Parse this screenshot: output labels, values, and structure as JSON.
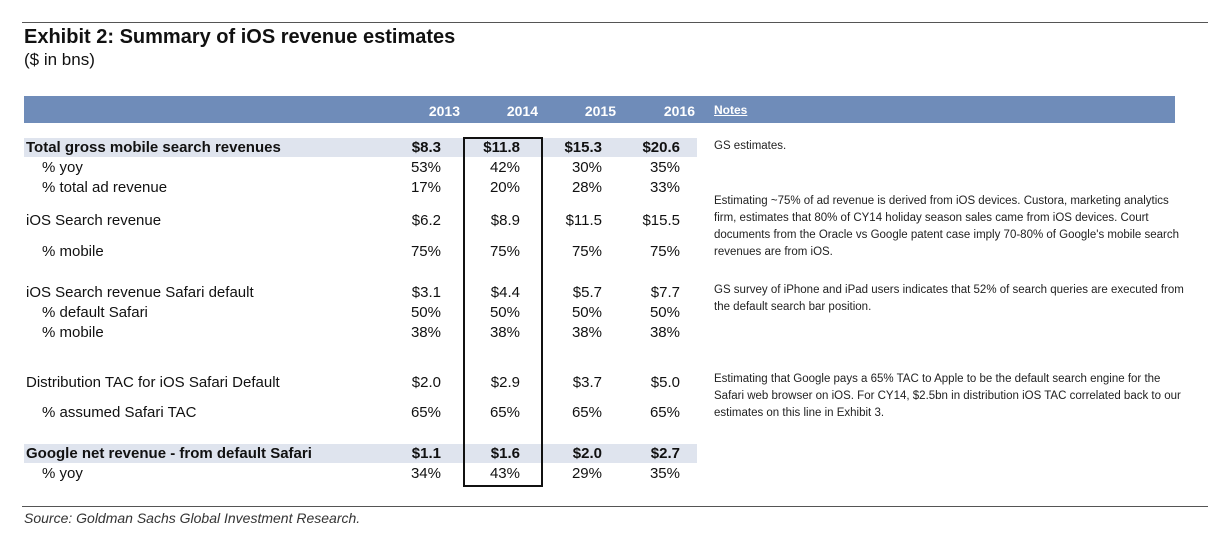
{
  "exhibit": {
    "title": "Exhibit 2: Summary of iOS revenue estimates",
    "subtitle": "($ in bns)"
  },
  "table": {
    "years": [
      "2013",
      "2014",
      "2015",
      "2016"
    ],
    "notes_header": "Notes",
    "rows": [
      {
        "label": "Total gross mobile search revenues",
        "values": [
          "$8.3",
          "$11.8",
          "$15.3",
          "$20.6"
        ]
      },
      {
        "label": "% yoy",
        "values": [
          "53%",
          "42%",
          "30%",
          "35%"
        ]
      },
      {
        "label": "% total ad revenue",
        "values": [
          "17%",
          "20%",
          "28%",
          "33%"
        ]
      },
      {
        "label": "iOS Search revenue",
        "values": [
          "$6.2",
          "$8.9",
          "$11.5",
          "$15.5"
        ]
      },
      {
        "label": "% mobile",
        "values": [
          "75%",
          "75%",
          "75%",
          "75%"
        ]
      },
      {
        "label": "iOS Search revenue Safari default",
        "values": [
          "$3.1",
          "$4.4",
          "$5.7",
          "$7.7"
        ]
      },
      {
        "label": "% default Safari",
        "values": [
          "50%",
          "50%",
          "50%",
          "50%"
        ]
      },
      {
        "label": "% mobile",
        "values": [
          "38%",
          "38%",
          "38%",
          "38%"
        ]
      },
      {
        "label": "Distribution TAC for iOS Safari Default",
        "values": [
          "$2.0",
          "$2.9",
          "$3.7",
          "$5.0"
        ]
      },
      {
        "label": "% assumed Safari TAC",
        "values": [
          "65%",
          "65%",
          "65%",
          "65%"
        ]
      },
      {
        "label": "Google net revenue - from default Safari",
        "values": [
          "$1.1",
          "$1.6",
          "$2.0",
          "$2.7"
        ]
      },
      {
        "label": "% yoy",
        "values": [
          "34%",
          "43%",
          "29%",
          "35%"
        ]
      }
    ],
    "notes": [
      "GS estimates.",
      "Estimating ~75% of ad revenue is derived from iOS devices. Custora, marketing analytics firm, estimates that 80% of CY14 holiday season sales came from iOS devices. Court documents from the Oracle vs Google patent case imply 70-80% of Google's mobile search revenues are from iOS.",
      "GS survey of iPhone and iPad users indicates that 52% of search queries are executed from the default search bar position.",
      "Estimating that Google pays a 65% TAC to Apple to be the default search engine for the Safari web browser on iOS. For CY14, $2.5bn in distribution iOS TAC correlated back to our estimates on this line in Exhibit 3."
    ]
  },
  "source": "Source: Goldman Sachs Global Investment Research."
}
